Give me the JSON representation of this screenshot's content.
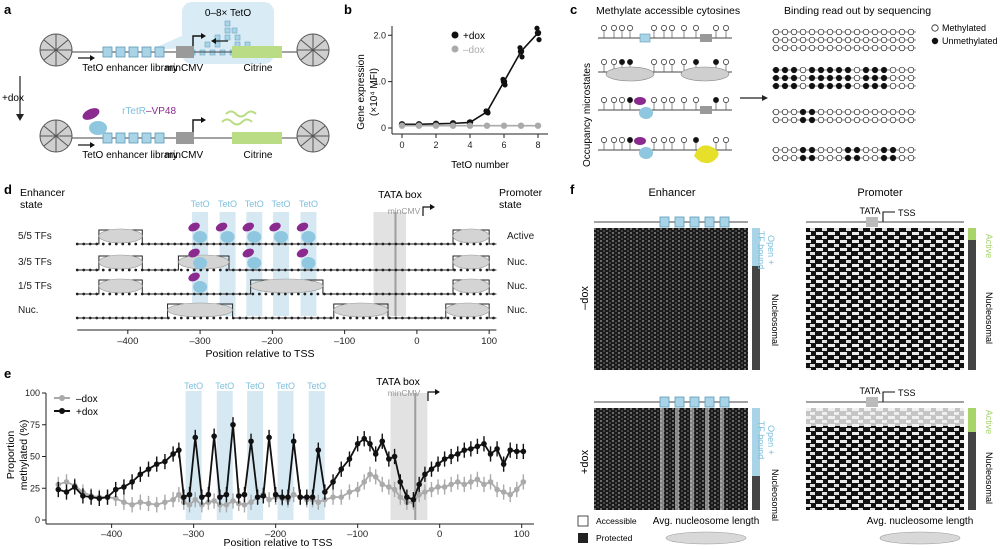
{
  "panel_a": {
    "letter": "a",
    "tetO_bubble": "0–8× TetO",
    "enhancer_label_top": "TetO enhancer library",
    "mincmv_top": "minCMV",
    "citrine_top": "Citrine",
    "plus_dox": "+dox",
    "rtetr_label": "rTetR",
    "vp48_label": "–VP48",
    "enhancer_label_bottom": "TetO enhancer library",
    "mincmv_bottom": "minCMV",
    "citrine_bottom": "Citrine"
  },
  "panel_b": {
    "letter": "b",
    "ylabel_1": "Gene expression",
    "ylabel_2": "(×10⁴ MFI)",
    "xlabel": "TetO number",
    "legend_plus": "+dox",
    "legend_minus": "–dox",
    "yticks": [
      "0",
      "1.0",
      "2.0"
    ],
    "xticks": [
      "0",
      "2",
      "4",
      "6",
      "8"
    ]
  },
  "panel_c": {
    "letter": "c",
    "header_left": "Methylate accessible cytosines",
    "header_right": "Binding read out by sequencing",
    "legend_methylated": "Methylated",
    "legend_unmethylated": "Unmethylated",
    "side_label": "Occupancy microstates"
  },
  "panel_d": {
    "letter": "d",
    "enhancer_state_1": "Enhancer",
    "enhancer_state_2": "state",
    "promoter_state_1": "Promoter",
    "promoter_state_2": "state",
    "tata_box": "TATA box",
    "mincmv": "minCMV",
    "teto_labels": [
      "TetO",
      "TetO",
      "TetO",
      "TetO",
      "TetO"
    ],
    "row_labels_left": [
      "5/5 TFs",
      "3/5 TFs",
      "1/5 TFs",
      "Nuc."
    ],
    "row_labels_right": [
      "Active",
      "Nuc.",
      "Nuc.",
      "Nuc."
    ],
    "xticks": [
      "–400",
      "–300",
      "–200",
      "–100",
      "0",
      "100"
    ],
    "xlabel": "Position relative to TSS"
  },
  "panel_e": {
    "letter": "e",
    "ylabel_1": "Proportion",
    "ylabel_2": "methylated (%)",
    "xlabel": "Position relative to TSS",
    "legend_minus": "–dox",
    "legend_plus": "+dox",
    "tata_box": "TATA box",
    "mincmv": "minCMV",
    "teto_labels": [
      "TetO",
      "TetO",
      "TetO",
      "TetO",
      "TetO"
    ],
    "yticks": [
      "0",
      "25",
      "50",
      "75",
      "100"
    ],
    "xticks": [
      "–400",
      "–300",
      "–200",
      "–100",
      "0",
      "100"
    ]
  },
  "panel_f": {
    "letter": "f",
    "enhancer_title": "Enhancer",
    "promoter_title": "Promoter",
    "minus_dox": "–dox",
    "plus_dox": "+dox",
    "tata": "TATA",
    "tss": "TSS",
    "open_tf_bound": "Open +",
    "open_tf_bound_2": "TF bound",
    "nucleosomal": "Nucleosomal",
    "active": "Active",
    "legend_accessible": "Accessible",
    "legend_protected": "Protected",
    "avg_nuc_length": "Avg. nucleosome length"
  },
  "colors": {
    "teto_blue": "#a9d3e6",
    "light_blue_fill": "#cfe6f1",
    "rtetr_blue": "#8ec7df",
    "vp48_purple": "#8a2a8f",
    "citrine_green": "#b9dc84",
    "yellow_tf": "#e6e02a",
    "grey_line": "#a6a6a6",
    "black_line": "#1a1a1a",
    "active_green": "#a8d46a"
  },
  "chart_data": [
    {
      "type": "line",
      "panel": "b",
      "xlabel": "TetO number",
      "ylabel": "Gene expression (×10⁴ MFI)",
      "x": [
        0,
        1,
        2,
        3,
        4,
        5,
        6,
        7,
        8
      ],
      "ylim": [
        0,
        2.2
      ],
      "series": [
        {
          "name": "+dox",
          "color": "#111111",
          "values": [
            0.08,
            0.08,
            0.09,
            0.1,
            0.12,
            0.35,
            1.0,
            1.65,
            2.05
          ]
        },
        {
          "name": "–dox",
          "color": "#aaaaaa",
          "values": [
            0.05,
            0.05,
            0.05,
            0.05,
            0.05,
            0.05,
            0.05,
            0.05,
            0.05
          ]
        }
      ]
    },
    {
      "type": "line",
      "panel": "e",
      "xlabel": "Position relative to TSS",
      "ylabel": "Proportion methylated (%)",
      "xlim": [
        -480,
        115
      ],
      "ylim": [
        0,
        100
      ],
      "series": [
        {
          "name": "+dox",
          "color": "#111111",
          "x": [
            -465,
            -455,
            -445,
            -435,
            -425,
            -415,
            -405,
            -395,
            -385,
            -375,
            -365,
            -355,
            -345,
            -335,
            -325,
            -318,
            -312,
            -305,
            -298,
            -290,
            -282,
            -275,
            -268,
            -260,
            -252,
            -245,
            -238,
            -230,
            -222,
            -215,
            -208,
            -200,
            -192,
            -185,
            -178,
            -170,
            -162,
            -155,
            -148,
            -140,
            -130,
            -120,
            -110,
            -100,
            -92,
            -85,
            -78,
            -70,
            -62,
            -55,
            -48,
            -40,
            -32,
            -25,
            -18,
            -10,
            -2,
            6,
            14,
            22,
            30,
            38,
            46,
            54,
            62,
            70,
            78,
            86,
            94,
            102
          ],
          "values": [
            24,
            22,
            26,
            19,
            18,
            17,
            18,
            24,
            26,
            30,
            36,
            40,
            44,
            46,
            52,
            55,
            18,
            20,
            65,
            18,
            20,
            66,
            18,
            20,
            75,
            19,
            20,
            62,
            18,
            19,
            65,
            20,
            18,
            18,
            62,
            18,
            18,
            18,
            55,
            22,
            30,
            40,
            48,
            60,
            64,
            60,
            52,
            62,
            48,
            50,
            30,
            18,
            16,
            28,
            36,
            40,
            44,
            48,
            50,
            52,
            55,
            56,
            58,
            60,
            52,
            56,
            44,
            55,
            54,
            54
          ]
        },
        {
          "name": "–dox",
          "color": "#aaaaaa",
          "x": [
            -465,
            -455,
            -445,
            -435,
            -425,
            -415,
            -405,
            -395,
            -385,
            -375,
            -365,
            -355,
            -345,
            -335,
            -325,
            -318,
            -312,
            -305,
            -298,
            -290,
            -282,
            -275,
            -268,
            -260,
            -252,
            -245,
            -238,
            -230,
            -222,
            -215,
            -208,
            -200,
            -192,
            -185,
            -178,
            -170,
            -162,
            -155,
            -148,
            -140,
            -130,
            -120,
            -110,
            -100,
            -92,
            -85,
            -78,
            -70,
            -62,
            -55,
            -48,
            -40,
            -32,
            -25,
            -18,
            -10,
            -2,
            6,
            14,
            22,
            30,
            38,
            46,
            54,
            62,
            70,
            78,
            86,
            94,
            102
          ],
          "values": [
            28,
            30,
            27,
            22,
            19,
            18,
            18,
            17,
            14,
            12,
            14,
            13,
            12,
            14,
            16,
            20,
            14,
            12,
            16,
            12,
            14,
            15,
            12,
            12,
            15,
            13,
            12,
            14,
            18,
            20,
            16,
            18,
            17,
            16,
            20,
            18,
            16,
            16,
            14,
            16,
            18,
            18,
            22,
            24,
            30,
            36,
            34,
            28,
            26,
            24,
            18,
            14,
            14,
            20,
            22,
            24,
            26,
            26,
            28,
            30,
            28,
            30,
            32,
            28,
            30,
            24,
            22,
            20,
            24,
            30
          ]
        }
      ]
    }
  ]
}
